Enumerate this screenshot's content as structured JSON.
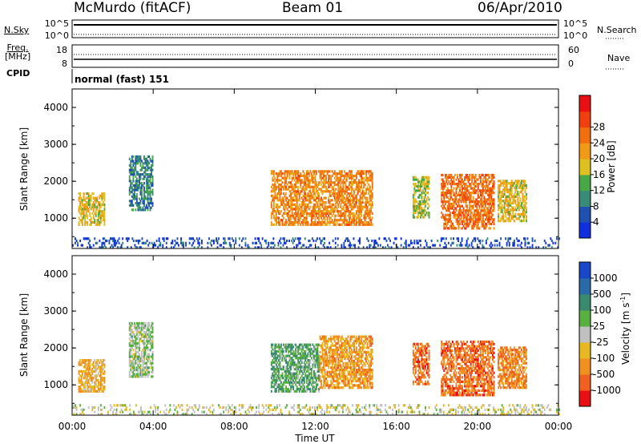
{
  "header": {
    "station": "McMurdo (fitACF)",
    "beam": "Beam 01",
    "date": "06/Apr/2010"
  },
  "status_panel": {
    "left_label_1": "N.Sky",
    "left_label_2a": "Freq.",
    "left_label_2b": "[MHz]",
    "left_label_3": "CPID",
    "right_label_1": "N.Search",
    "right_label_2": "Nave",
    "sky_ticks": [
      "10^5",
      "10^0"
    ],
    "freq_ticks": [
      "18",
      "8"
    ],
    "nave_ticks": [
      "60",
      "0"
    ],
    "cpid_text": "normal (fast) 151"
  },
  "axes": {
    "ylabel": "Slant Range [km]",
    "xlabel": "Time UT",
    "yticks": [
      "1000",
      "2000",
      "3000",
      "4000"
    ],
    "xticks": [
      "00:00",
      "04:00",
      "08:00",
      "12:00",
      "16:00",
      "20:00",
      "00:00"
    ]
  },
  "power_colorbar": {
    "label": "Power [dB]",
    "ticks": [
      "4",
      "8",
      "12",
      "16",
      "20",
      "24",
      "28"
    ],
    "colors": [
      "#1030e0",
      "#2050b0",
      "#3a8a78",
      "#48a848",
      "#e0c020",
      "#f09a18",
      "#f07010",
      "#f04010",
      "#e81010"
    ]
  },
  "velocity_colorbar": {
    "label": "Velocity [m s",
    "label_sup": "-1",
    "label_close": "]",
    "ticks": [
      "1000",
      "500",
      "100",
      "25",
      "-25",
      "-100",
      "-500",
      "-1000"
    ],
    "colors": [
      "#1848c8",
      "#2a6aa8",
      "#3a8a70",
      "#58b040",
      "#c0c0c0",
      "#e8b820",
      "#f09020",
      "#f06020",
      "#e81010"
    ]
  },
  "chart_data": [
    {
      "type": "heatmap",
      "title": "Power",
      "xlabel": "Time UT",
      "ylabel": "Slant Range [km]",
      "xlim": [
        0,
        24
      ],
      "ylim": [
        180,
        4500
      ],
      "colorbar_range": [
        0,
        30
      ],
      "colorbar_label": "Power [dB]",
      "regions": [
        {
          "t0": 0.3,
          "t1": 1.6,
          "r0": 800,
          "r1": 1700,
          "value": 16
        },
        {
          "t0": 2.8,
          "t1": 4.0,
          "r0": 1200,
          "r1": 2700,
          "value": 8
        },
        {
          "t0": 9.8,
          "t1": 14.8,
          "r0": 800,
          "r1": 2300,
          "value": 20
        },
        {
          "t0": 16.8,
          "t1": 17.6,
          "r0": 1000,
          "r1": 2100,
          "value": 14
        },
        {
          "t0": 18.2,
          "t1": 20.8,
          "r0": 700,
          "r1": 2200,
          "value": 22
        },
        {
          "t0": 21.0,
          "t1": 22.4,
          "r0": 900,
          "r1": 2000,
          "value": 16
        },
        {
          "t0": 0.0,
          "t1": 24.0,
          "r0": 180,
          "r1": 450,
          "value": 4
        }
      ]
    },
    {
      "type": "heatmap",
      "title": "Velocity",
      "xlabel": "Time UT",
      "ylabel": "Slant Range [km]",
      "xlim": [
        0,
        24
      ],
      "ylim": [
        180,
        4500
      ],
      "colorbar_range": [
        -1000,
        1000
      ],
      "colorbar_label": "Velocity [m s-1]",
      "regions": [
        {
          "t0": 0.3,
          "t1": 1.6,
          "r0": 800,
          "r1": 1700,
          "value": -300
        },
        {
          "t0": 2.8,
          "t1": 4.0,
          "r0": 1200,
          "r1": 2700,
          "value": 100
        },
        {
          "t0": 9.8,
          "t1": 12.2,
          "r0": 800,
          "r1": 2100,
          "value": 300
        },
        {
          "t0": 12.2,
          "t1": 14.8,
          "r0": 900,
          "r1": 2300,
          "value": -400
        },
        {
          "t0": 16.8,
          "t1": 17.6,
          "r0": 1000,
          "r1": 2100,
          "value": -600
        },
        {
          "t0": 18.2,
          "t1": 20.8,
          "r0": 700,
          "r1": 2200,
          "value": -600
        },
        {
          "t0": 21.0,
          "t1": 22.4,
          "r0": 900,
          "r1": 2000,
          "value": -500
        },
        {
          "t0": 0.0,
          "t1": 24.0,
          "r0": 180,
          "r1": 450,
          "value": -50
        }
      ]
    }
  ]
}
